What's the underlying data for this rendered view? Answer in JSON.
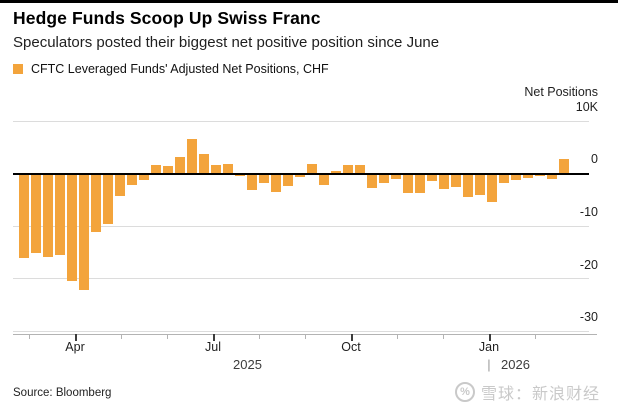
{
  "header": {
    "title": "Hedge Funds Scoop Up Swiss Franc",
    "subtitle": "Speculators posted their biggest net positive position since June"
  },
  "legend": {
    "label": "CFTC Leveraged Funds' Adjusted Net Positions, CHF",
    "swatch_color": "#F3A43C"
  },
  "chart_data": {
    "type": "bar",
    "title": "CFTC Leveraged Funds' Adjusted Net Positions, CHF",
    "y_axis_title": "Net Positions",
    "ylabel": "Net Positions",
    "ylim": [
      -30000,
      10000
    ],
    "grid": true,
    "bar_color": "#F3A43C",
    "y_ticks": [
      "10K",
      "0",
      "-10",
      "-20",
      "-30"
    ],
    "x_tick_labels": [
      "Apr",
      "Jul",
      "Oct",
      "Jan"
    ],
    "year_labels": [
      "2025",
      "2026"
    ],
    "year_separator": "|",
    "x_period": "weekly, Mar 2025 - Feb 2026",
    "values_k": [
      -15.8,
      -14.9,
      -15.7,
      -15.2,
      -20.2,
      -21.9,
      -10.8,
      -9.4,
      -4.1,
      -2.0,
      -1.0,
      1.5,
      1.4,
      3.1,
      6.4,
      3.7,
      1.5,
      1.8,
      -0.2,
      -2.9,
      -1.6,
      -3.2,
      -2.1,
      -0.3,
      1.7,
      -1.9,
      0.4,
      1.5,
      1.5,
      -2.5,
      -1.5,
      -0.8,
      -3.4,
      -3.5,
      -1.1,
      -2.7,
      -2.3,
      -4.2,
      -3.8,
      -5.1,
      -1.5,
      -1.0,
      -0.6,
      -0.1,
      -0.7,
      2.6
    ]
  },
  "footer": {
    "source": "Source: Bloomberg",
    "watermark": "雪球：新浪财经",
    "watermark_logo": "%"
  }
}
